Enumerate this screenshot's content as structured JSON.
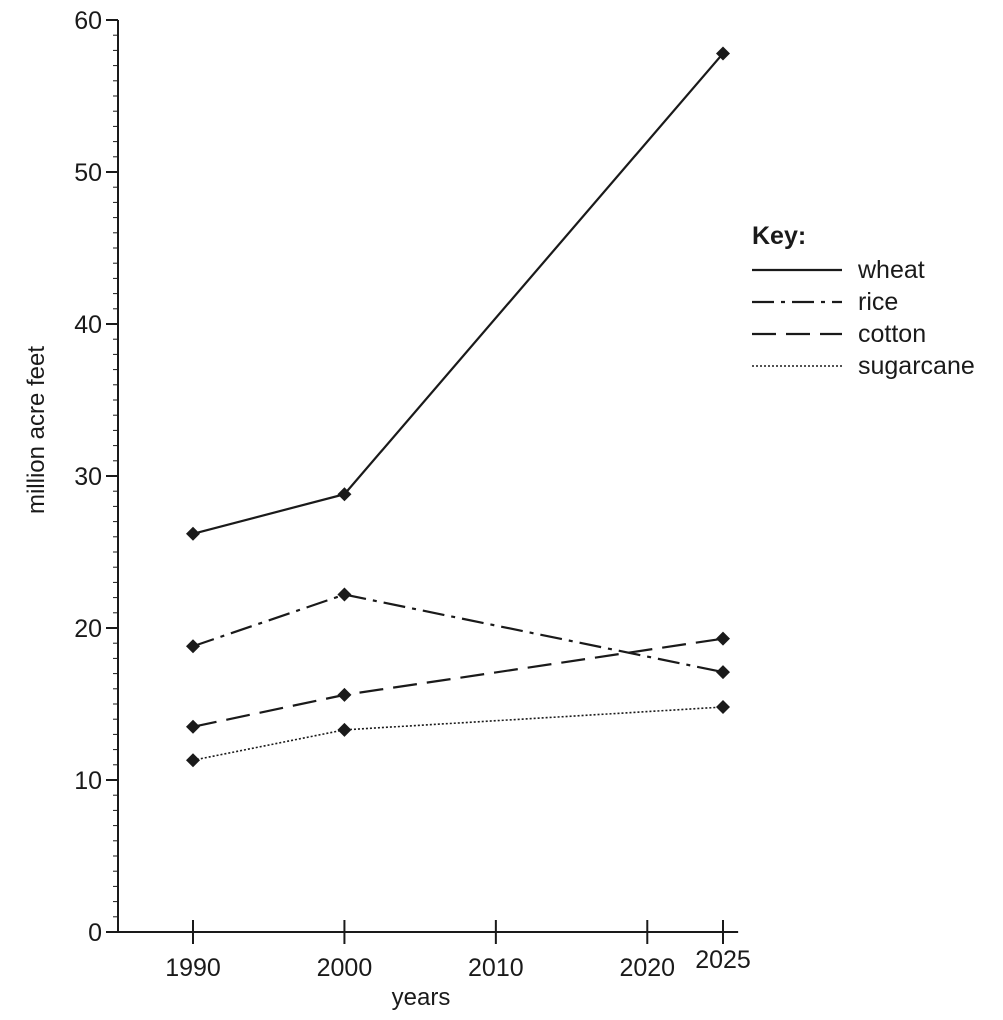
{
  "chart_data": {
    "type": "line",
    "title": "",
    "xlabel": "years",
    "ylabel": "million acre feet",
    "xlim": [
      1985,
      2026
    ],
    "ylim": [
      0,
      60
    ],
    "x_ticks": [
      1990,
      2000,
      2010,
      2020,
      2025
    ],
    "y_ticks": [
      0,
      10,
      20,
      30,
      40,
      50,
      60
    ],
    "y_minor_step": 1,
    "grid": false,
    "legend": {
      "title": "Key:",
      "position": "right"
    },
    "x": [
      1990,
      2000,
      2025
    ],
    "series": [
      {
        "name": "wheat",
        "dash": "solid",
        "values": [
          26.2,
          28.8,
          57.8
        ]
      },
      {
        "name": "rice",
        "dash": "dashdot",
        "values": [
          18.8,
          22.2,
          17.1
        ]
      },
      {
        "name": "cotton",
        "dash": "dashed",
        "values": [
          13.5,
          15.6,
          19.3
        ]
      },
      {
        "name": "sugarcane",
        "dash": "dotted",
        "values": [
          11.3,
          13.3,
          14.8
        ]
      }
    ],
    "line_color": "#1a1a1a"
  }
}
